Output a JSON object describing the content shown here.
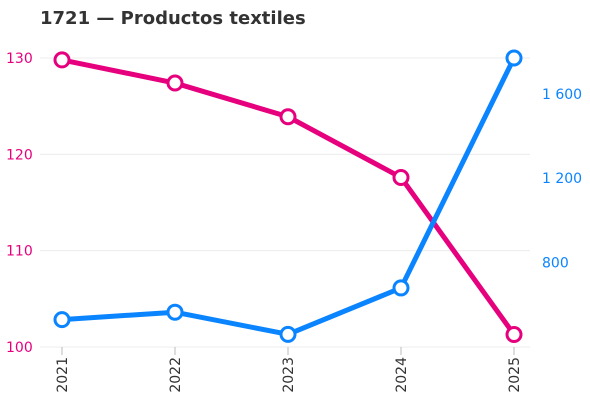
{
  "chart_data": {
    "type": "line",
    "title": "1721 — Productos textiles",
    "categories": [
      "2021",
      "2022",
      "2023",
      "2024",
      "2025"
    ],
    "series": [
      {
        "axis": "left",
        "color": "#e6007e",
        "values": [
          129.8,
          127.4,
          123.9,
          117.6,
          101.3
        ]
      },
      {
        "axis": "right",
        "color": "#0a84ff",
        "values": [
          530,
          565,
          460,
          680,
          1770
        ]
      }
    ],
    "y_left": {
      "range": [
        100,
        130
      ],
      "ticks": [
        "100",
        "110",
        "120",
        "130"
      ],
      "color": "#e6007e"
    },
    "y_right": {
      "range": [
        400,
        1770
      ],
      "ticks": [
        "800",
        "1 200",
        "1 600"
      ],
      "color": "#0a84ff"
    },
    "grid": true,
    "legend": "none"
  }
}
